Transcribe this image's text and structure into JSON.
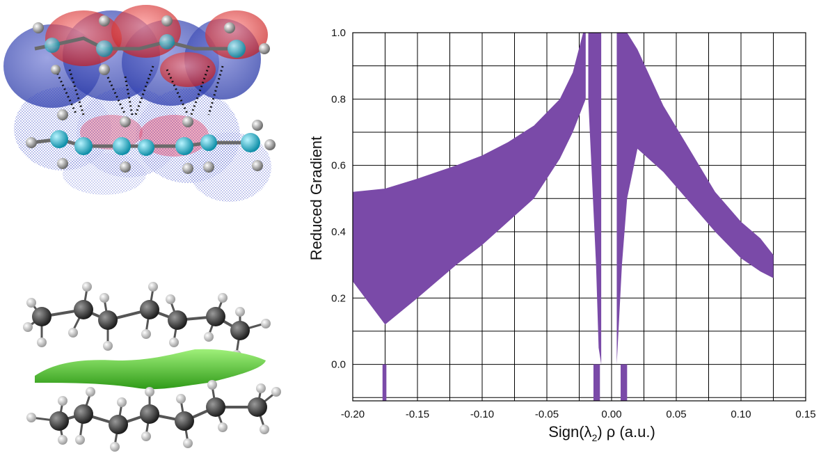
{
  "figure": {
    "panel_top": "molecular-complex-orbital-isosurfaces",
    "panel_bottom": "alkane-dimer-nci-surface",
    "colors": {
      "points": "#7a4aa8",
      "grid": "#000000",
      "nci_surface": "#4fc632",
      "carbon": "#3a3a3a",
      "hydrogen": "#e6e6e6"
    }
  },
  "chart_data": {
    "type": "scatter",
    "xlabel_main": "Sign(λ",
    "xlabel_sub": "2",
    "xlabel_rest": ") ρ (a.u.)",
    "ylabel": "Reduced Gradient",
    "xlim": [
      -0.2,
      0.15
    ],
    "ylim": [
      -0.11,
      1.0
    ],
    "xticks": [
      "-0.20",
      "-0.15",
      "-0.10",
      "-0.05",
      "0.00",
      "0.05",
      "0.10",
      "0.15"
    ],
    "yticks": [
      "0.0",
      "0.2",
      "0.4",
      "0.6",
      "0.8",
      "1.0"
    ],
    "grid": true,
    "series": [
      {
        "region": "negative-branch",
        "x": [
          -0.2,
          -0.175,
          -0.15,
          -0.12,
          -0.1,
          -0.08,
          -0.06,
          -0.04,
          -0.03,
          -0.022,
          -0.02
        ],
        "upper": [
          0.52,
          0.53,
          0.56,
          0.6,
          0.63,
          0.67,
          0.72,
          0.8,
          0.88,
          1.0,
          1.0
        ],
        "lower": [
          0.25,
          0.12,
          0.2,
          0.3,
          0.36,
          0.43,
          0.5,
          0.62,
          0.7,
          0.78,
          0.8
        ]
      },
      {
        "region": "near-zero-negative",
        "x": [
          -0.018,
          -0.015,
          -0.012,
          -0.01,
          -0.008
        ],
        "upper": [
          1.0,
          1.0,
          1.0,
          1.0,
          1.0
        ],
        "lower": [
          0.8,
          0.55,
          0.3,
          0.05,
          0.0
        ]
      },
      {
        "region": "positive-branch",
        "x": [
          0.004,
          0.008,
          0.012,
          0.02,
          0.04,
          0.06,
          0.08,
          0.1,
          0.115,
          0.125
        ],
        "upper": [
          1.0,
          1.0,
          1.0,
          0.95,
          0.78,
          0.65,
          0.52,
          0.43,
          0.38,
          0.33
        ],
        "lower": [
          0.0,
          0.3,
          0.5,
          0.65,
          0.58,
          0.49,
          0.4,
          0.32,
          0.28,
          0.26
        ]
      }
    ],
    "spikes": [
      {
        "x0": -0.177,
        "x1": -0.174
      },
      {
        "x0": -0.014,
        "x1": -0.009
      },
      {
        "x0": 0.007,
        "x1": 0.012
      }
    ]
  }
}
